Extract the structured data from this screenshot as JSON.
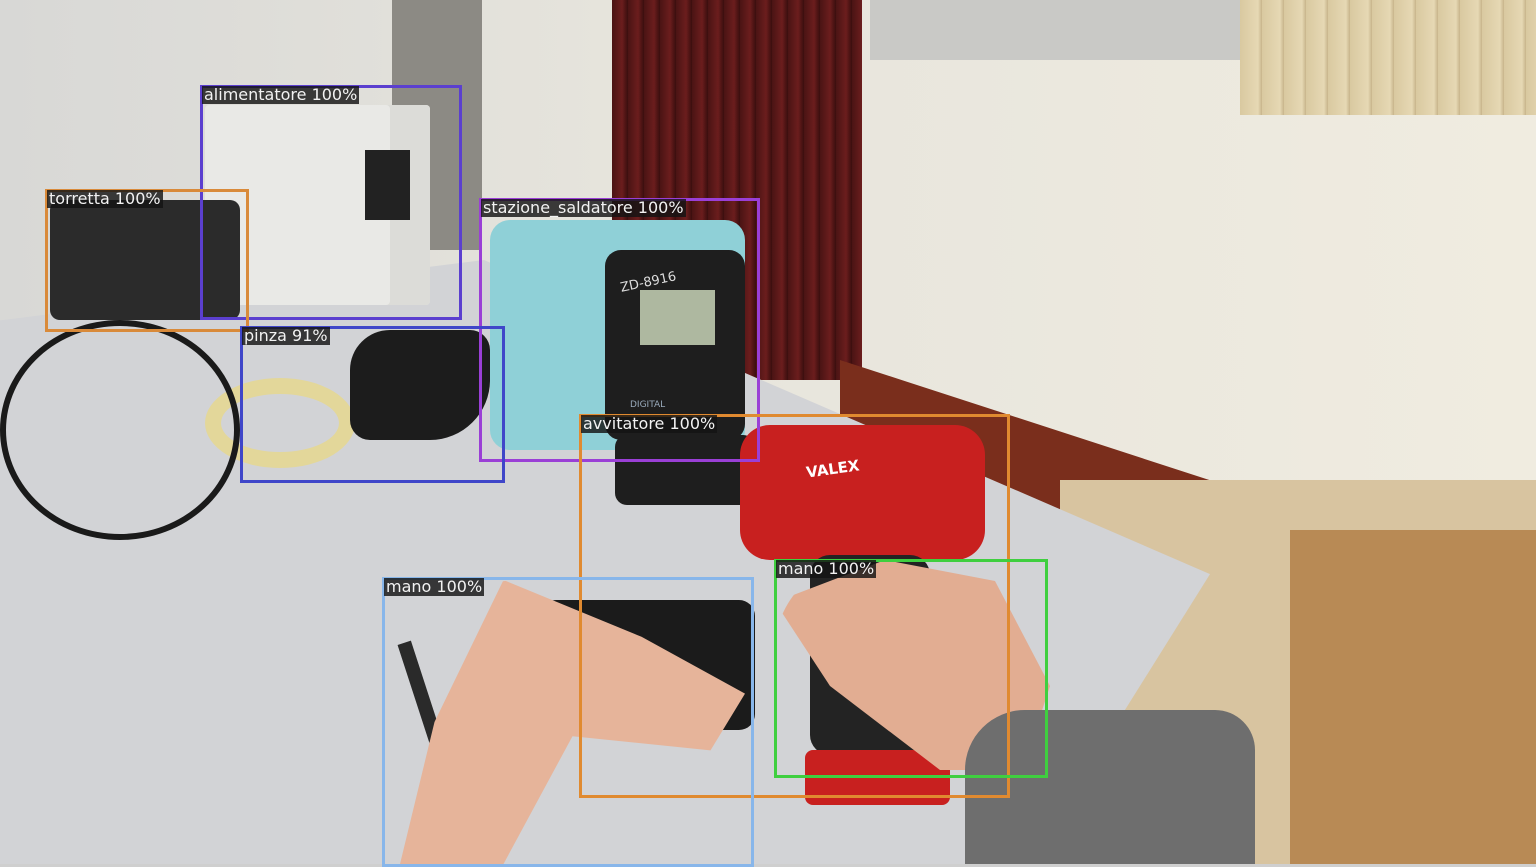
{
  "detections": [
    {
      "label": "alimentatore 100%",
      "color": "#5b3fcf"
    },
    {
      "label": "torretta 100%",
      "color": "#d98a3a"
    },
    {
      "label": "stazione_saldatore 100%",
      "color": "#9a3fd6"
    },
    {
      "label": "pinza 91%",
      "color": "#3f46c9"
    },
    {
      "label": "avvitatore 100%",
      "color": "#e08a30"
    },
    {
      "label": "mano 100%",
      "color": "#3fcf3f"
    },
    {
      "label": "mano 100%",
      "color": "#88b6ea"
    }
  ],
  "objects": {
    "station_model": "ZD-8916",
    "station_display_caption": "DIGITAL",
    "drill_brand": "VALEX"
  }
}
